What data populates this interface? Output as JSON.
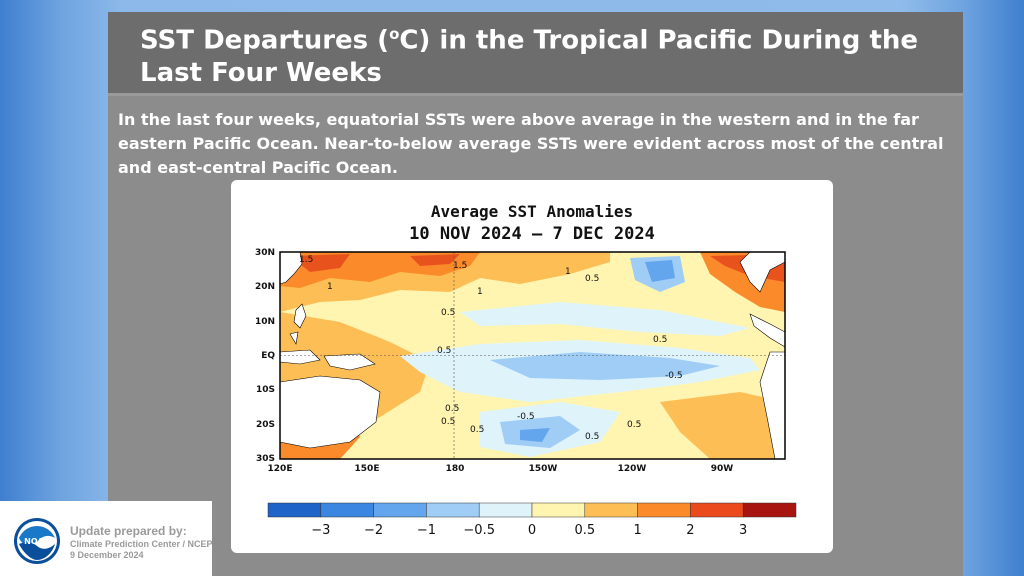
{
  "slide": {
    "title_pre": "SST Departures (",
    "title_sup": "o",
    "title_post": "C) in the Tropical Pacific During the Last Four Weeks",
    "summary": "In the last four weeks, equatorial SSTs were above average in the western and in the far eastern Pacific Ocean.  Near-to-below average SSTs were evident across most of the central and east-central Pacific Ocean."
  },
  "chart": {
    "title_line1": "Average SST Anomalies",
    "title_line2": "10 NOV 2024 – 7 DEC 2024",
    "lat_labels": [
      "30N",
      "20N",
      "10N",
      "EQ",
      "10S",
      "20S",
      "30S"
    ],
    "lon_labels": [
      "120E",
      "150E",
      "180",
      "150W",
      "120W",
      "90W"
    ],
    "contour_labels": [
      "1.5",
      "1",
      "1.5",
      "1",
      "1",
      "0.5",
      "0.5",
      "0.5",
      "0.5",
      "-0.5",
      "0.5",
      "0.5",
      "0.5",
      "-0.5",
      "0.5",
      "0.5"
    ],
    "colorbar_ticks": [
      "−3",
      "−2",
      "−1",
      "−0.5",
      "0",
      "0.5",
      "1",
      "2",
      "3"
    ],
    "colorbar_colors": [
      "#1d63c8",
      "#3a86e0",
      "#63a6ee",
      "#9fcdf5",
      "#dff3fb",
      "#fff5b0",
      "#fdbf55",
      "#fb8a2a",
      "#ea4a1c",
      "#a81410"
    ],
    "colors": {
      "strong_warm": "#e8531d",
      "warm": "#fb8a2a",
      "mild_warm": "#fdbf55",
      "slight_warm": "#fff5b0",
      "neutral": "#dff3fb",
      "slight_cool": "#9fcdf5",
      "cool": "#63a6ee",
      "land": "#ffffff"
    }
  },
  "footer": {
    "line1": "Update prepared by:",
    "line2": "Climate Prediction Center / NCEP",
    "line3": "9 December 2024",
    "logo_text": "NOAA"
  }
}
